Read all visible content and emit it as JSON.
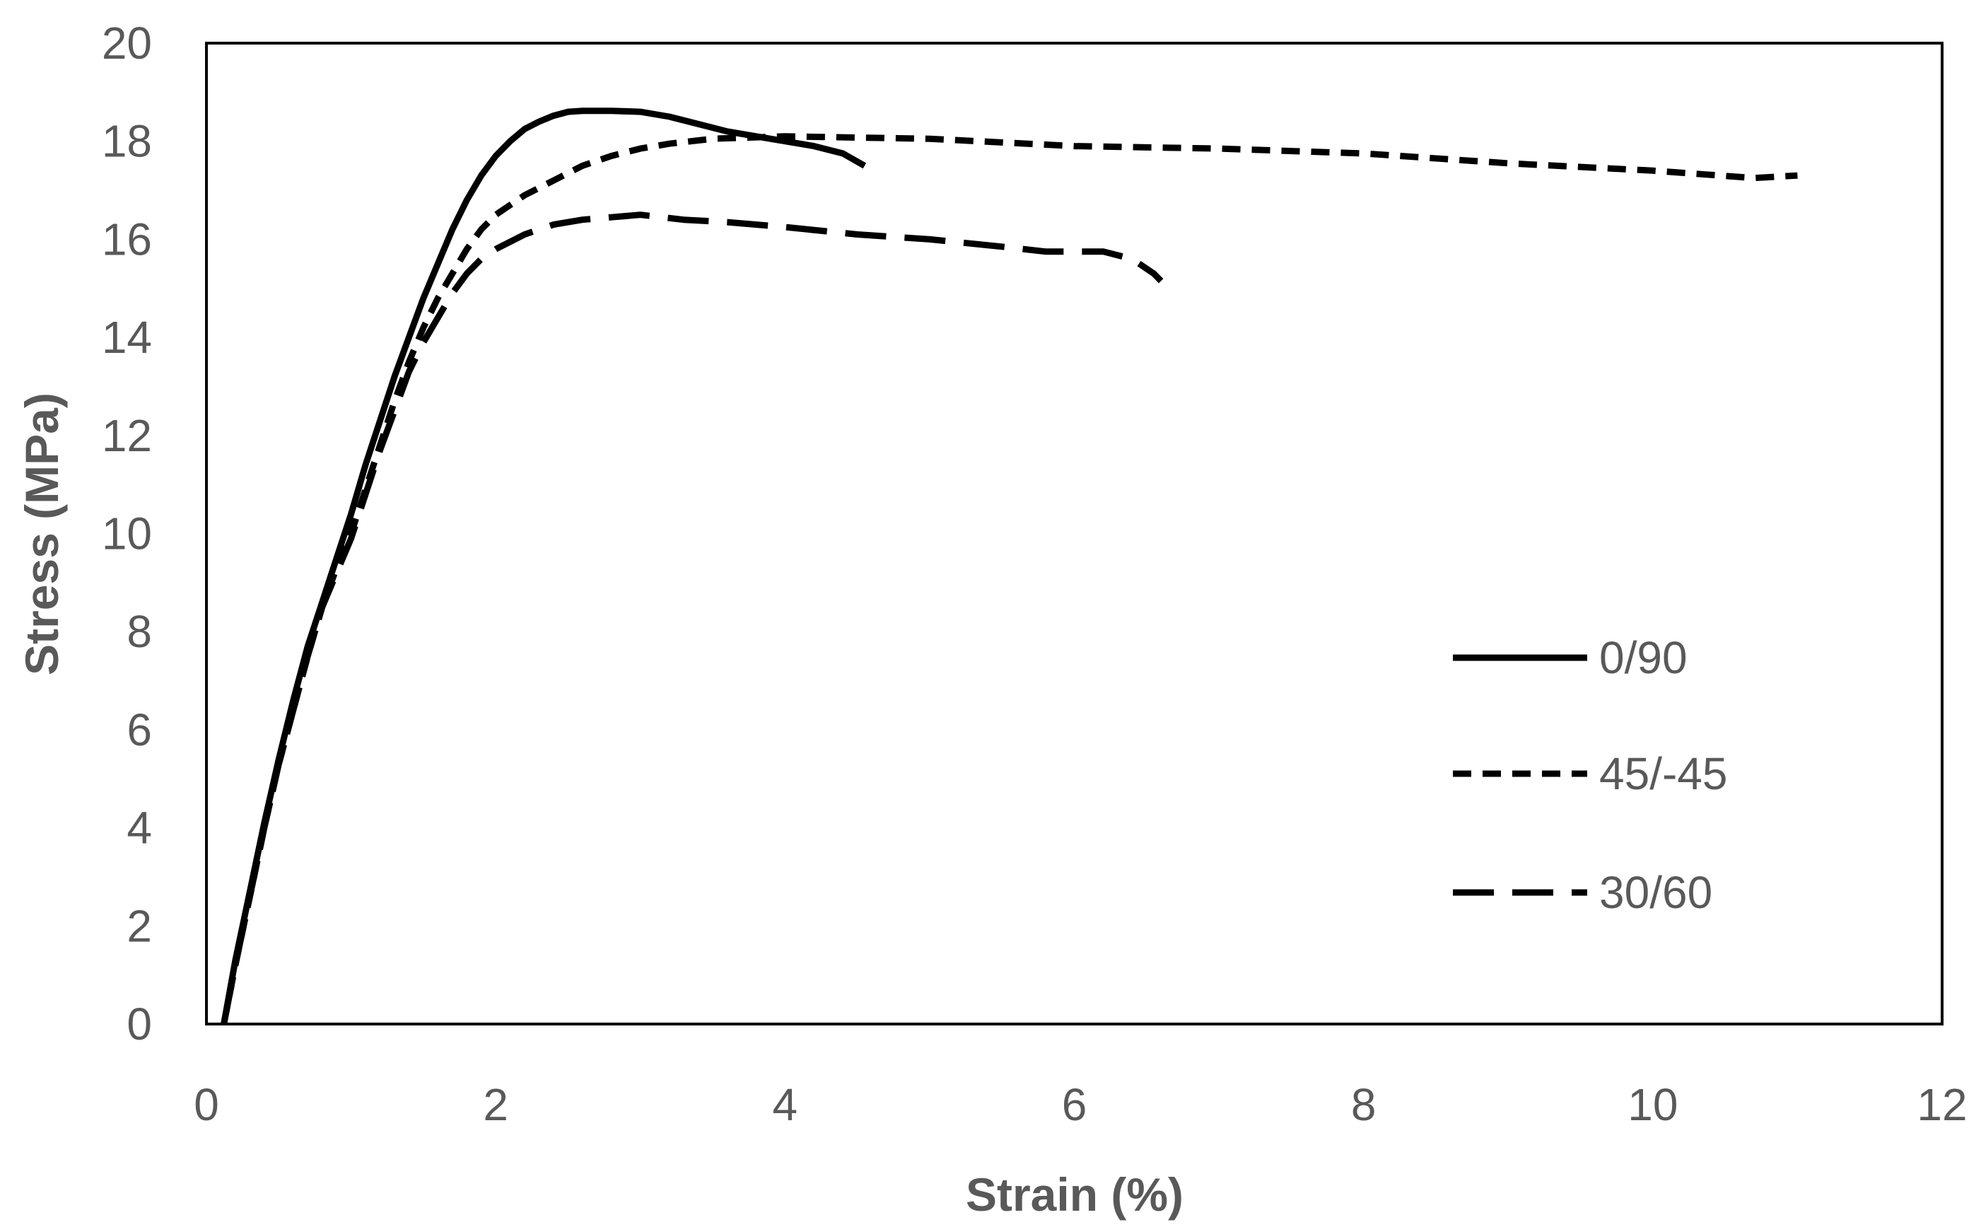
{
  "chart_data": {
    "type": "line",
    "title": "",
    "xlabel": "Strain (%)",
    "ylabel": "Stress (MPa)",
    "xlim": [
      0,
      12
    ],
    "ylim": [
      0,
      20
    ],
    "xticks": [
      0,
      2,
      4,
      6,
      8,
      10,
      12
    ],
    "yticks": [
      0,
      2,
      4,
      6,
      8,
      10,
      12,
      14,
      16,
      18,
      20
    ],
    "grid": false,
    "legend_position": "right-middle",
    "series": [
      {
        "name": "0/90",
        "style": "solid",
        "color": "#000000",
        "x": [
          0.12,
          0.2,
          0.3,
          0.4,
          0.5,
          0.6,
          0.7,
          0.8,
          0.9,
          1.0,
          1.1,
          1.2,
          1.3,
          1.4,
          1.5,
          1.6,
          1.7,
          1.8,
          1.9,
          2.0,
          2.1,
          2.2,
          2.3,
          2.4,
          2.5,
          2.6,
          2.8,
          3.0,
          3.2,
          3.4,
          3.6,
          3.8,
          4.0,
          4.2,
          4.4,
          4.55
        ],
        "y": [
          0,
          1.3,
          2.7,
          4.1,
          5.4,
          6.6,
          7.7,
          8.6,
          9.5,
          10.4,
          11.4,
          12.3,
          13.2,
          14.0,
          14.8,
          15.5,
          16.2,
          16.8,
          17.3,
          17.7,
          18.0,
          18.25,
          18.4,
          18.52,
          18.6,
          18.62,
          18.62,
          18.6,
          18.5,
          18.35,
          18.2,
          18.1,
          18.0,
          17.9,
          17.75,
          17.5
        ]
      },
      {
        "name": "45/-45",
        "style": "short-dash",
        "color": "#000000",
        "x": [
          0.12,
          0.2,
          0.3,
          0.4,
          0.5,
          0.6,
          0.7,
          0.8,
          0.9,
          1.0,
          1.1,
          1.2,
          1.3,
          1.4,
          1.5,
          1.6,
          1.7,
          1.8,
          1.9,
          2.0,
          2.2,
          2.4,
          2.6,
          2.8,
          3.0,
          3.2,
          3.5,
          4.0,
          5.0,
          6.0,
          7.0,
          8.0,
          9.0,
          10.0,
          10.7,
          11.0
        ],
        "y": [
          0,
          1.2,
          2.6,
          4.0,
          5.3,
          6.4,
          7.5,
          8.5,
          9.3,
          10.0,
          10.9,
          11.8,
          12.7,
          13.5,
          14.2,
          14.8,
          15.3,
          15.8,
          16.2,
          16.5,
          16.9,
          17.2,
          17.5,
          17.7,
          17.85,
          17.95,
          18.05,
          18.1,
          18.05,
          17.9,
          17.85,
          17.75,
          17.55,
          17.4,
          17.25,
          17.3
        ]
      },
      {
        "name": "30/60",
        "style": "long-dash",
        "color": "#000000",
        "x": [
          0.12,
          0.2,
          0.3,
          0.4,
          0.5,
          0.6,
          0.7,
          0.8,
          0.9,
          1.0,
          1.1,
          1.2,
          1.3,
          1.4,
          1.5,
          1.6,
          1.7,
          1.8,
          1.9,
          2.0,
          2.2,
          2.4,
          2.6,
          2.8,
          3.0,
          3.3,
          3.6,
          4.0,
          4.5,
          5.0,
          5.5,
          5.8,
          6.2,
          6.4,
          6.55,
          6.6
        ],
        "y": [
          0,
          1.2,
          2.6,
          4.0,
          5.3,
          6.4,
          7.5,
          8.5,
          9.2,
          9.9,
          10.8,
          11.7,
          12.5,
          13.3,
          13.9,
          14.4,
          14.9,
          15.3,
          15.6,
          15.8,
          16.1,
          16.3,
          16.4,
          16.45,
          16.5,
          16.4,
          16.35,
          16.25,
          16.1,
          16.0,
          15.85,
          15.75,
          15.75,
          15.6,
          15.3,
          15.15
        ]
      }
    ]
  }
}
